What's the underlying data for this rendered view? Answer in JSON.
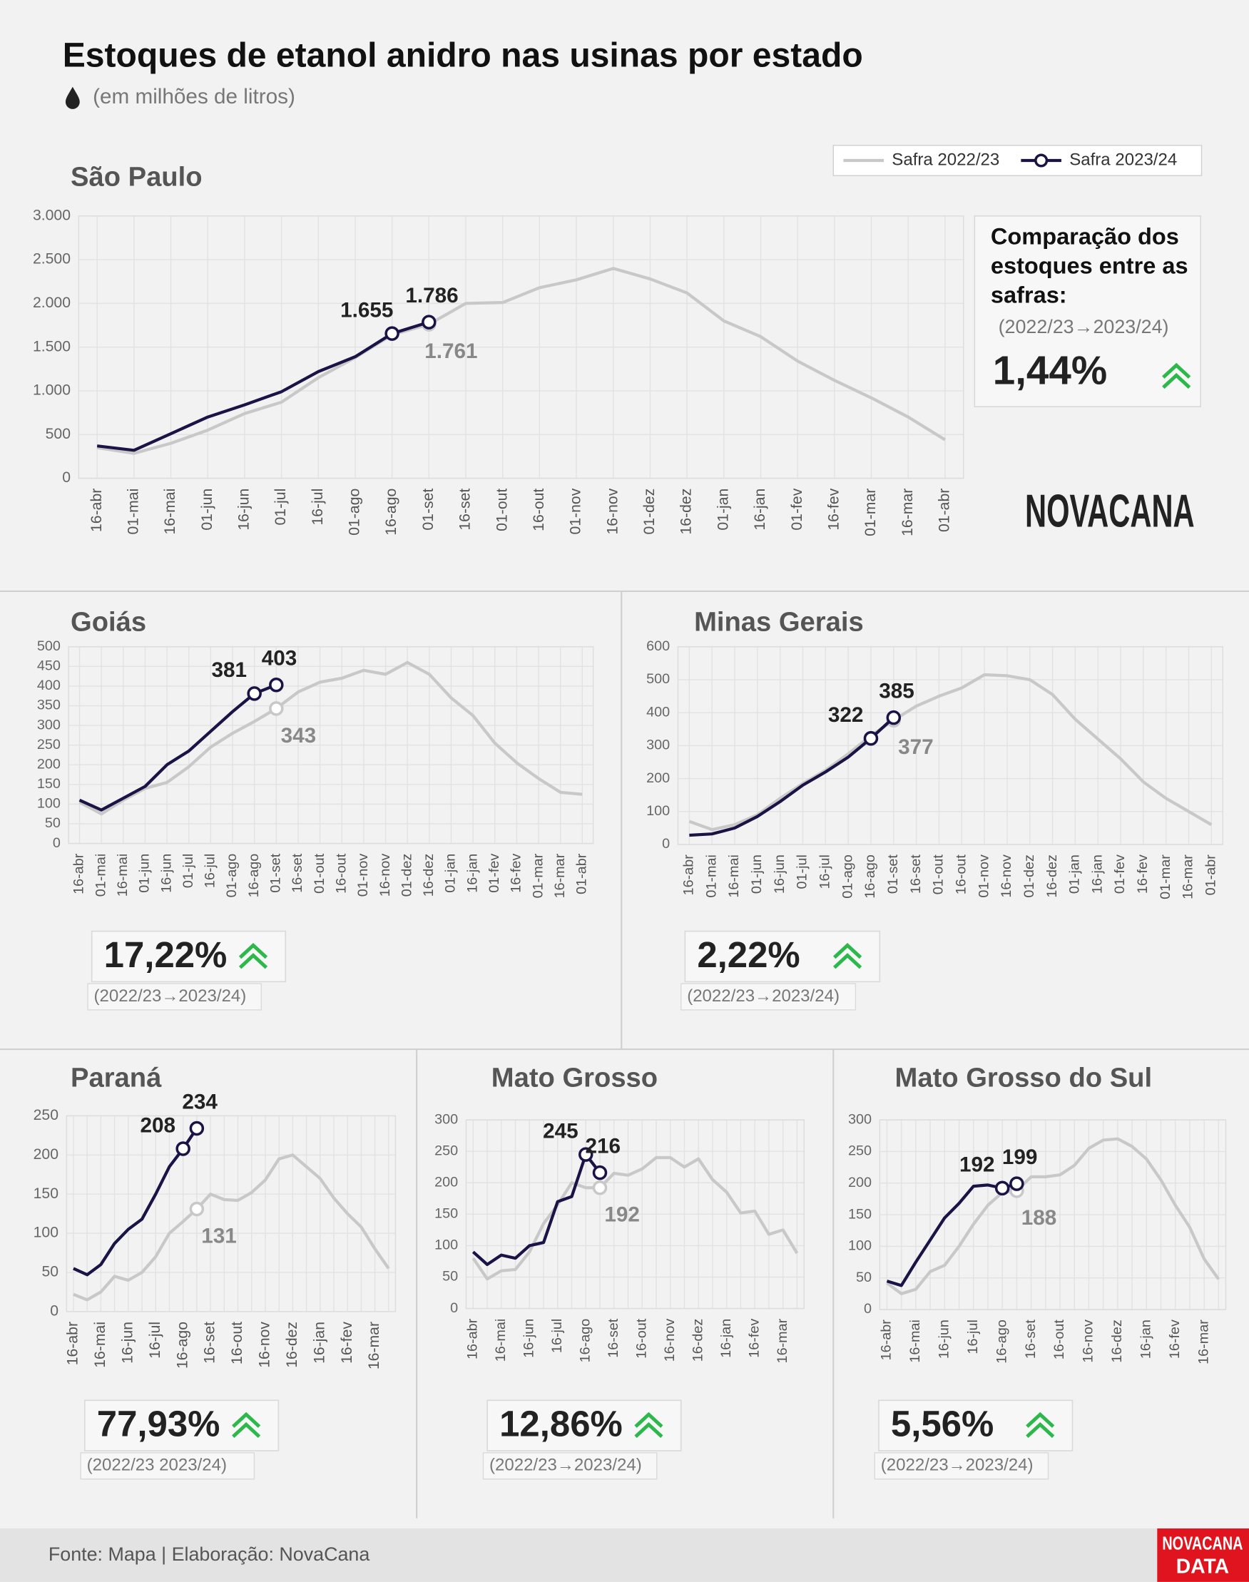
{
  "header": {
    "title": "Estoques de etanol anidro nas usinas por estado",
    "subtitle": "(em milhões de litros)"
  },
  "logo": "NOVACANA",
  "footer": {
    "source": "Fonte: Mapa | Elaboração: NovaCana",
    "logo": [
      "NOVACANA",
      "DATA"
    ]
  },
  "chart_data": [
    {
      "type": "line",
      "title": "São Paulo",
      "categories": [
        "16-abr",
        "01-mai",
        "16-mai",
        "01-jun",
        "16-jun",
        "01-jul",
        "16-jul",
        "01-ago",
        "16-ago",
        "01-set",
        "16-set",
        "01-out",
        "16-out",
        "01-nov",
        "16-nov",
        "01-dez",
        "16-dez",
        "01-jan",
        "16-jan",
        "01-fev",
        "16-fev",
        "01-mar",
        "16-mar",
        "01-abr"
      ],
      "series": [
        {
          "name": "Safra 2022/23",
          "color": "#c8c8c8",
          "values": [
            350,
            285,
            400,
            550,
            740,
            870,
            1150,
            1380,
            1640,
            1761,
            2000,
            2010,
            2180,
            2270,
            2400,
            2280,
            2120,
            1800,
            1620,
            1340,
            1120,
            920,
            700,
            440
          ],
          "value_labels": [
            null,
            null,
            null,
            null,
            null,
            null,
            null,
            null,
            null,
            "1.761",
            null,
            null,
            null,
            null,
            null,
            null,
            null,
            null,
            null,
            null,
            null,
            null,
            null,
            null
          ]
        },
        {
          "name": "Safra 2023/24",
          "color": "#1a1446",
          "values": [
            370,
            320,
            510,
            700,
            840,
            990,
            1220,
            1390,
            1655,
            1786,
            null,
            null,
            null,
            null,
            null,
            null,
            null,
            null,
            null,
            null,
            null,
            null,
            null,
            null
          ],
          "value_labels": [
            null,
            null,
            null,
            null,
            null,
            null,
            null,
            null,
            "1.655",
            "1.786",
            null,
            null,
            null,
            null,
            null,
            null,
            null,
            null,
            null,
            null,
            null,
            null,
            null,
            null
          ]
        }
      ],
      "ylim": [
        0,
        3000
      ],
      "yticks": [
        0,
        500,
        {
          "value": 1000,
          "label": "1.000"
        },
        {
          "value": 1500,
          "label": "1.500"
        },
        {
          "value": 2000,
          "label": "2.000"
        },
        {
          "value": 2500,
          "label": "2.500"
        },
        {
          "value": 3000,
          "label": "3.000"
        }
      ],
      "grid": true,
      "legend": "top-right",
      "note": "Comparação dos estoques entre as safras:",
      "change_period": "(2022/23→2023/24)",
      "change": "1,44%"
    },
    {
      "type": "line",
      "title": "Goiás",
      "categories": [
        "16-abr",
        "01-mai",
        "16-mai",
        "01-jun",
        "16-jun",
        "01-jul",
        "16-jul",
        "01-ago",
        "16-ago",
        "01-set",
        "16-set",
        "01-out",
        "16-out",
        "01-nov",
        "16-nov",
        "01-dez",
        "16-dez",
        "01-jan",
        "16-jan",
        "01-fev",
        "16-fev",
        "01-mar",
        "16-mar",
        "01-abr"
      ],
      "series": [
        {
          "color": "#c8c8c8",
          "values": [
            105,
            75,
            110,
            140,
            155,
            195,
            245,
            280,
            310,
            343,
            385,
            410,
            420,
            440,
            430,
            460,
            430,
            370,
            325,
            255,
            205,
            165,
            130,
            125
          ],
          "value_labels": [
            null,
            null,
            null,
            null,
            null,
            null,
            null,
            null,
            null,
            "343",
            null,
            null,
            null,
            null,
            null,
            null,
            null,
            null,
            null,
            null,
            null,
            null,
            null,
            null
          ]
        },
        {
          "color": "#1a1446",
          "values": [
            110,
            85,
            115,
            145,
            200,
            235,
            285,
            335,
            381,
            403,
            null,
            null,
            null,
            null,
            null,
            null,
            null,
            null,
            null,
            null,
            null,
            null,
            null,
            null
          ],
          "value_labels": [
            null,
            null,
            null,
            null,
            null,
            null,
            null,
            null,
            "381",
            "403",
            null,
            null,
            null,
            null,
            null,
            null,
            null,
            null,
            null,
            null,
            null,
            null,
            null,
            null
          ]
        }
      ],
      "ylim": [
        0,
        500
      ],
      "yticks": [
        0,
        50,
        100,
        150,
        200,
        250,
        300,
        350,
        400,
        450,
        500
      ],
      "grid": true,
      "change": "17,22%",
      "change_period": "(2022/23→2023/24)"
    },
    {
      "type": "line",
      "title": "Minas Gerais",
      "categories": [
        "16-abr",
        "01-mai",
        "16-mai",
        "01-jun",
        "16-jun",
        "01-jul",
        "16-jul",
        "01-ago",
        "16-ago",
        "01-set",
        "16-set",
        "01-out",
        "16-out",
        "01-nov",
        "16-nov",
        "01-dez",
        "16-dez",
        "01-jan",
        "16-jan",
        "01-fev",
        "16-fev",
        "01-mar",
        "16-mar",
        "01-abr"
      ],
      "series": [
        {
          "color": "#c8c8c8",
          "values": [
            70,
            45,
            60,
            90,
            140,
            185,
            225,
            275,
            330,
            377,
            420,
            450,
            475,
            515,
            512,
            500,
            455,
            380,
            320,
            260,
            190,
            140,
            100,
            60
          ],
          "value_labels": [
            null,
            null,
            null,
            null,
            null,
            null,
            null,
            null,
            null,
            "377",
            null,
            null,
            null,
            null,
            null,
            null,
            null,
            null,
            null,
            null,
            null,
            null,
            null,
            null
          ]
        },
        {
          "color": "#1a1446",
          "values": [
            28,
            32,
            50,
            85,
            130,
            180,
            220,
            265,
            322,
            385,
            null,
            null,
            null,
            null,
            null,
            null,
            null,
            null,
            null,
            null,
            null,
            null,
            null,
            null
          ],
          "value_labels": [
            null,
            null,
            null,
            null,
            null,
            null,
            null,
            null,
            "322",
            "385",
            null,
            null,
            null,
            null,
            null,
            null,
            null,
            null,
            null,
            null,
            null,
            null,
            null,
            null
          ]
        }
      ],
      "ylim": [
        0,
        600
      ],
      "yticks": [
        0,
        100,
        200,
        300,
        400,
        500,
        600
      ],
      "grid": true,
      "change": "2,22%",
      "change_period": "(2022/23→2023/24)"
    },
    {
      "type": "line",
      "title": "Paraná",
      "categories": [
        "16-abr",
        null,
        "16-mai",
        null,
        "16-jun",
        null,
        "16-jul",
        null,
        "16-ago",
        null,
        "16-set",
        null,
        "16-out",
        null,
        "16-nov",
        null,
        "16-dez",
        null,
        "16-jan",
        null,
        "16-fev",
        null,
        "16-mar",
        null
      ],
      "series": [
        {
          "color": "#c8c8c8",
          "values": [
            22,
            15,
            25,
            45,
            40,
            50,
            70,
            100,
            115,
            131,
            150,
            143,
            142,
            152,
            168,
            195,
            200,
            185,
            170,
            145,
            125,
            108,
            80,
            55
          ],
          "value_labels": [
            null,
            null,
            null,
            null,
            null,
            null,
            null,
            null,
            null,
            "131",
            null,
            null,
            null,
            null,
            null,
            null,
            null,
            null,
            null,
            null,
            null,
            null,
            null,
            null
          ]
        },
        {
          "color": "#1a1446",
          "values": [
            55,
            47,
            60,
            87,
            105,
            118,
            150,
            185,
            208,
            234,
            null,
            null,
            null,
            null,
            null,
            null,
            null,
            null,
            null,
            null,
            null,
            null,
            null,
            null
          ],
          "value_labels": [
            null,
            null,
            null,
            null,
            null,
            null,
            null,
            null,
            "208",
            "234",
            null,
            null,
            null,
            null,
            null,
            null,
            null,
            null,
            null,
            null,
            null,
            null,
            null,
            null
          ]
        }
      ],
      "ylim": [
        0,
        250
      ],
      "yticks": [
        0,
        50,
        100,
        150,
        200,
        250
      ],
      "grid": true,
      "change": "77,93%",
      "change_period": "(2022/23   2023/24)"
    },
    {
      "type": "line",
      "title": "Mato Grosso",
      "categories": [
        "16-abr",
        null,
        "16-mai",
        null,
        "16-jun",
        null,
        "16-jul",
        null,
        "16-ago",
        null,
        "16-set",
        null,
        "16-out",
        null,
        "16-nov",
        null,
        "16-dez",
        null,
        "16-jan",
        null,
        "16-fev",
        null,
        "16-mar",
        null
      ],
      "series": [
        {
          "color": "#c8c8c8",
          "values": [
            80,
            47,
            60,
            62,
            90,
            135,
            165,
            200,
            192,
            192,
            215,
            212,
            222,
            240,
            240,
            225,
            238,
            205,
            185,
            152,
            155,
            118,
            125,
            88
          ],
          "value_labels": [
            null,
            null,
            null,
            null,
            null,
            null,
            null,
            null,
            null,
            "192",
            null,
            null,
            null,
            null,
            null,
            null,
            null,
            null,
            null,
            null,
            null,
            null,
            null,
            null
          ]
        },
        {
          "color": "#1a1446",
          "values": [
            90,
            70,
            85,
            80,
            100,
            105,
            170,
            178,
            245,
            216,
            null,
            null,
            null,
            null,
            null,
            null,
            null,
            null,
            null,
            null,
            null,
            null,
            null,
            null
          ],
          "value_labels": [
            null,
            null,
            null,
            null,
            null,
            null,
            null,
            null,
            "245",
            "216",
            null,
            null,
            null,
            null,
            null,
            null,
            null,
            null,
            null,
            null,
            null,
            null,
            null,
            null
          ]
        }
      ],
      "ylim": [
        0,
        300
      ],
      "yticks": [
        0,
        50,
        100,
        150,
        200,
        250,
        300
      ],
      "grid": true,
      "change": "12,86%",
      "change_period": "(2022/23→2023/24)"
    },
    {
      "type": "line",
      "title": "Mato Grosso do Sul",
      "categories": [
        "16-abr",
        null,
        "16-mai",
        null,
        "16-jun",
        null,
        "16-jul",
        null,
        "16-ago",
        null,
        "16-set",
        null,
        "16-out",
        null,
        "16-nov",
        null,
        "16-dez",
        null,
        "16-jan",
        null,
        "16-fev",
        null,
        "16-mar",
        null
      ],
      "series": [
        {
          "color": "#c8c8c8",
          "values": [
            42,
            25,
            32,
            60,
            70,
            100,
            135,
            165,
            185,
            188,
            210,
            210,
            213,
            228,
            255,
            268,
            270,
            258,
            238,
            205,
            165,
            130,
            80,
            48
          ],
          "value_labels": [
            null,
            null,
            null,
            null,
            null,
            null,
            null,
            null,
            null,
            "188",
            null,
            null,
            null,
            null,
            null,
            null,
            null,
            null,
            null,
            null,
            null,
            null,
            null,
            null
          ]
        },
        {
          "color": "#1a1446",
          "values": [
            45,
            38,
            75,
            110,
            145,
            168,
            195,
            197,
            192,
            199,
            null,
            null,
            null,
            null,
            null,
            null,
            null,
            null,
            null,
            null,
            null,
            null,
            null,
            null
          ],
          "value_labels": [
            null,
            null,
            null,
            null,
            null,
            null,
            null,
            null,
            "192",
            "199",
            null,
            null,
            null,
            null,
            null,
            null,
            null,
            null,
            null,
            null,
            null,
            null,
            null,
            null
          ]
        }
      ],
      "ylim": [
        0,
        300
      ],
      "yticks": [
        0,
        50,
        100,
        150,
        200,
        250,
        300
      ],
      "grid": true,
      "change": "5,56%",
      "change_period": "(2022/23→2023/24)"
    }
  ]
}
